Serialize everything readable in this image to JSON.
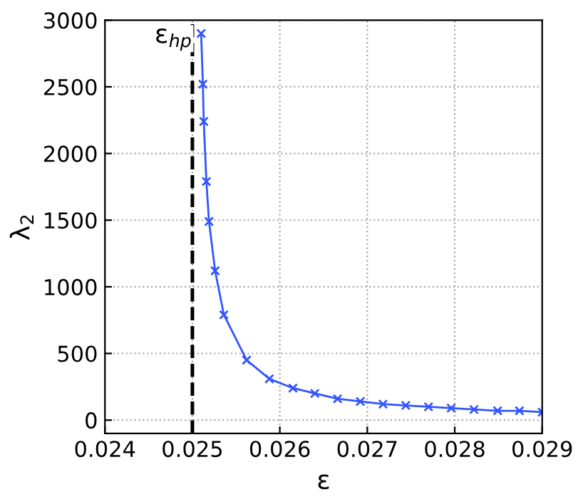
{
  "chart_data": {
    "type": "line",
    "xlabel": "ε",
    "ylabel": "λ$_{2}$",
    "x": [
      0.0251,
      0.02512,
      0.02513,
      0.02516,
      0.02519,
      0.02526,
      0.02536,
      0.02562,
      0.02588,
      0.02615,
      0.0264,
      0.02666,
      0.02692,
      0.02718,
      0.02744,
      0.0277,
      0.02796,
      0.02822,
      0.02849,
      0.02874,
      0.029
    ],
    "series": [
      {
        "color": "#3355ff",
        "values": [
          2900,
          2520,
          2240,
          1790,
          1490,
          1120,
          790,
          450,
          310,
          240,
          200,
          160,
          140,
          120,
          110,
          100,
          90,
          80,
          70,
          70,
          60
        ]
      }
    ],
    "xlim": [
      0.024,
      0.029
    ],
    "xticks": [
      0.024,
      0.025,
      0.026,
      0.027,
      0.028,
      0.029
    ],
    "ylim": [
      -100,
      3000
    ],
    "yticks": [
      0,
      500,
      1000,
      1500,
      2000,
      2500,
      3000
    ],
    "grid": true,
    "marker": "cross",
    "line_style": "solid",
    "ref_lines": [
      {
        "axis": "x",
        "value": 0.025,
        "label": "ε$_{hp}$",
        "color": "#000000",
        "line_style": "dashed"
      }
    ]
  }
}
